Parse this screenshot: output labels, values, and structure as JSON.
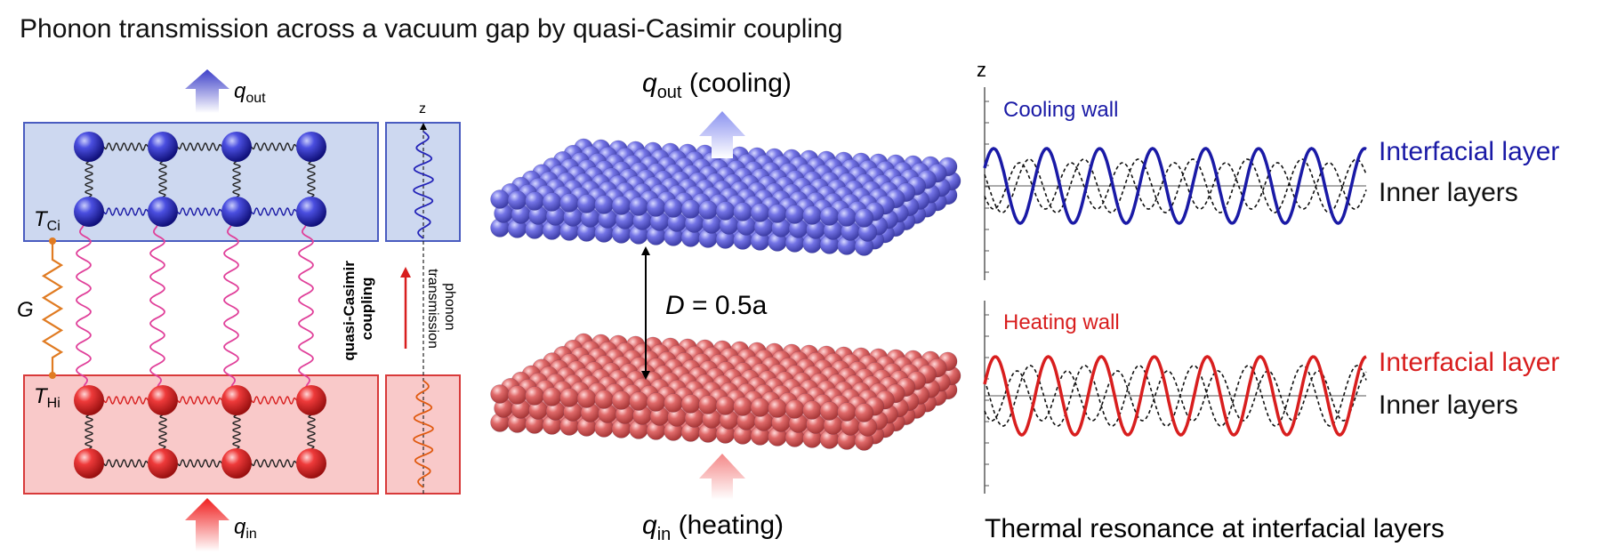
{
  "title": "Phonon transmission across a vacuum gap by quasi-Casimir coupling",
  "left_panel": {
    "q_out": {
      "symbol": "q",
      "sub": "out"
    },
    "q_in": {
      "symbol": "q",
      "sub": "in"
    },
    "t_ci": {
      "symbol": "T",
      "sub": "Ci"
    },
    "t_hi": {
      "symbol": "T",
      "sub": "Hi"
    },
    "g_label": "G",
    "z_axis": "z",
    "coupling_line1": "quasi-Casimir",
    "coupling_line2": "coupling",
    "phonon_line1": "phonon",
    "phonon_line2": "transmission"
  },
  "middle_panel": {
    "q_out": {
      "symbol": "q",
      "sub": "out",
      "suffix": " (cooling)"
    },
    "q_in": {
      "symbol": "q",
      "sub": "in",
      "suffix": " (heating)"
    },
    "gap_var": "D",
    "gap_val": " = 0.5a"
  },
  "right_panel": {
    "z_label": "z",
    "cooling_title": "Cooling wall",
    "heating_title": "Heating wall",
    "interfacial": "Interfacial layer",
    "inner": "Inner layers",
    "caption": "Thermal resonance at interfacial layers"
  },
  "colors": {
    "cool": "#1a1aa6",
    "heat": "#d81e1e",
    "cool_fill": "#cdd8f0",
    "heat_fill": "#f9c9c9",
    "spring_pink": "#e0409a",
    "g_orange": "#e07b22"
  }
}
